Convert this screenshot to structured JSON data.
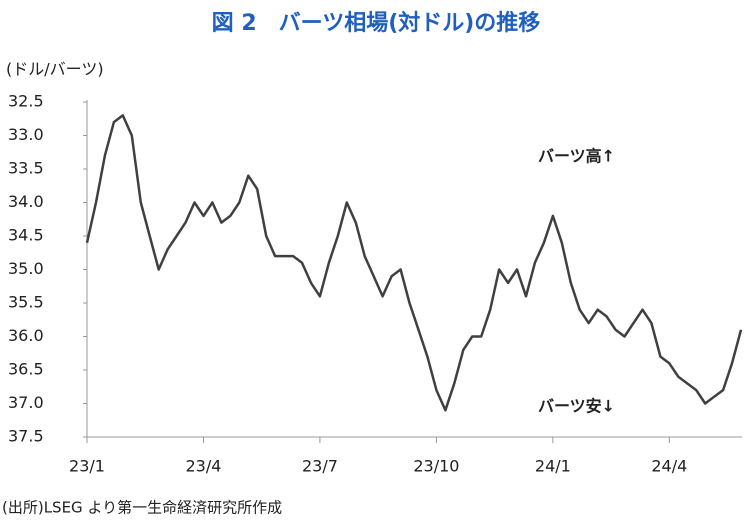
{
  "chart_data": {
    "type": "line",
    "title": "図 2　バーツ相場(対ドル)の推移",
    "y_label": "(ドル/バーツ)",
    "source": "(出所)LSEG より第一生命経済研究所作成",
    "annotations": [
      "バーツ高↑",
      "バーツ安↓"
    ],
    "categories": [
      "23/1",
      null,
      null,
      null,
      null,
      null,
      null,
      null,
      null,
      null,
      null,
      null,
      null,
      "23/4",
      null,
      null,
      null,
      null,
      null,
      null,
      null,
      null,
      null,
      null,
      null,
      null,
      "23/7",
      null,
      null,
      null,
      null,
      null,
      null,
      null,
      null,
      null,
      null,
      null,
      null,
      "23/10",
      null,
      null,
      null,
      null,
      null,
      null,
      null,
      null,
      null,
      null,
      null,
      null,
      "24/1",
      null,
      null,
      null,
      null,
      null,
      null,
      null,
      null,
      null,
      null,
      null,
      null,
      "24/4",
      null,
      null,
      null,
      null,
      null,
      null,
      null,
      null
    ],
    "series": [
      {
        "color": "#404040",
        "values": [
          34.6,
          34.0,
          33.3,
          32.8,
          32.7,
          33.0,
          34.0,
          34.5,
          35.0,
          34.7,
          34.5,
          34.3,
          34.0,
          34.2,
          34.0,
          34.3,
          34.2,
          34.0,
          33.6,
          33.8,
          34.5,
          34.8,
          34.8,
          34.8,
          34.9,
          35.2,
          35.4,
          34.9,
          34.5,
          34.0,
          34.3,
          34.8,
          35.1,
          35.4,
          35.1,
          35.0,
          35.5,
          35.9,
          36.3,
          36.8,
          37.1,
          36.7,
          36.2,
          36.0,
          36.0,
          35.6,
          35.0,
          35.2,
          35.0,
          35.4,
          34.9,
          34.6,
          34.2,
          34.6,
          35.2,
          35.6,
          35.8,
          35.6,
          35.7,
          35.9,
          36.0,
          35.8,
          35.6,
          35.8,
          36.3,
          36.4,
          36.6,
          36.7,
          36.8,
          37.0,
          36.9,
          36.8,
          36.4,
          35.9
        ]
      }
    ],
    "ylim": [
      37.5,
      32.5
    ],
    "yticks": [
      32.5,
      {
        "value": 33,
        "label": "33.0"
      },
      33.5,
      {
        "value": 34,
        "label": "34.0"
      },
      34.5,
      {
        "value": 35,
        "label": "35.0"
      },
      35.5,
      {
        "value": 36,
        "label": "36.0"
      },
      36.5,
      {
        "value": 37,
        "label": "37.0"
      },
      37.5
    ],
    "grid": false
  }
}
